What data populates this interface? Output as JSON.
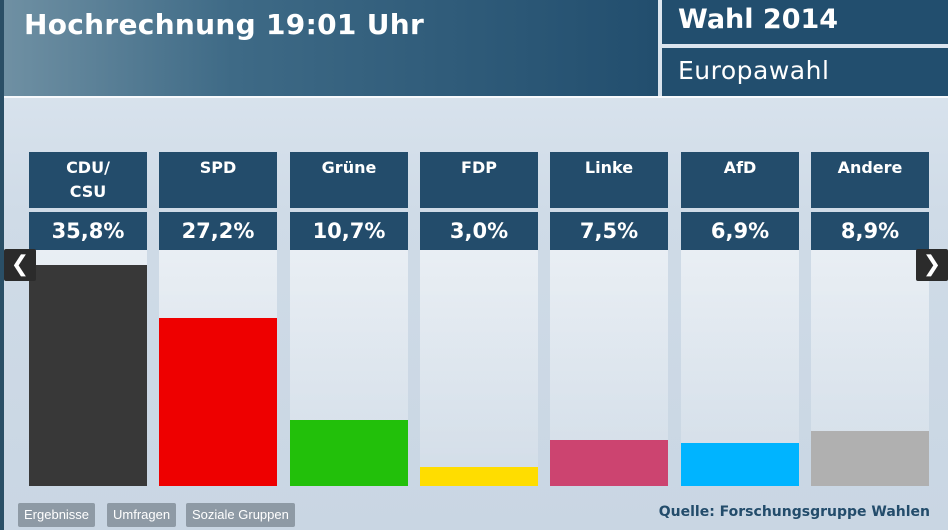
{
  "header": {
    "title": "Hochrechnung 19:01 Uhr",
    "election": "Wahl 2014",
    "subtitle": "Europawahl"
  },
  "footer": {
    "buttons": [
      "Ergebnisse",
      "Umfragen",
      "Soziale Gruppen"
    ],
    "source": "Quelle: Forschungsgruppe Wahlen"
  },
  "nav": {
    "prev_icon": "chevron-left-icon",
    "next_icon": "chevron-right-icon"
  },
  "chart_data": {
    "type": "bar",
    "categories": [
      "CDU/\nCSU",
      "SPD",
      "Grüne",
      "FDP",
      "Linke",
      "AfD",
      "Andere"
    ],
    "values": [
      35.8,
      27.2,
      10.7,
      3.0,
      7.5,
      6.9,
      8.9
    ],
    "value_labels": [
      "35,8%",
      "27,2%",
      "10,7%",
      "3,0%",
      "7,5%",
      "6,9%",
      "8,9%"
    ],
    "colors": [
      "#383838",
      "#ee0000",
      "#22c00a",
      "#ffdd00",
      "#cc4470",
      "#00b4ff",
      "#b0b0b0"
    ],
    "ylim": [
      0,
      38
    ],
    "grid": false,
    "legend": "none"
  }
}
